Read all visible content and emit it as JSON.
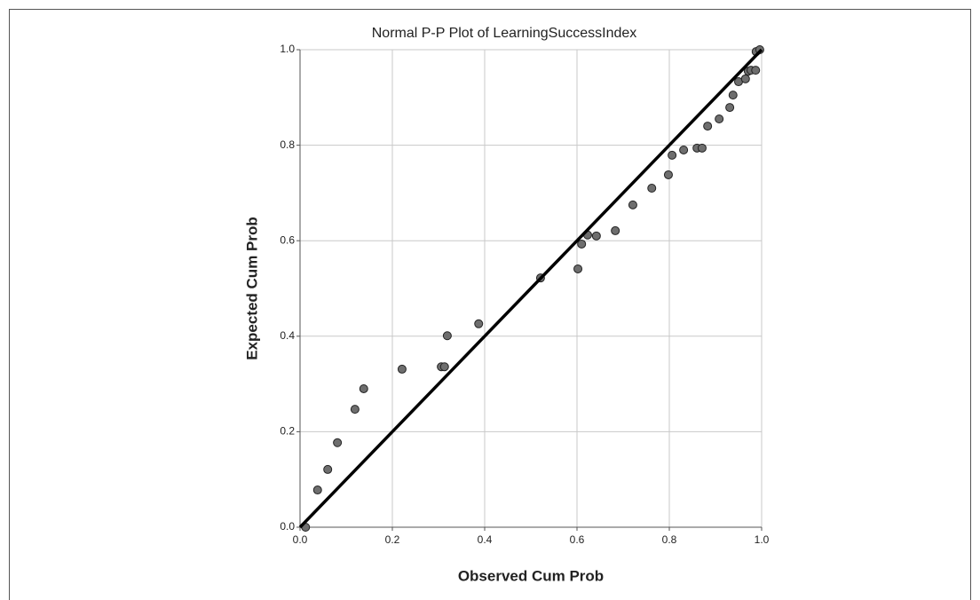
{
  "chart_data": {
    "type": "scatter",
    "title": "Normal P-P Plot of LearningSuccessIndex",
    "xlabel": "Observed Cum Prob",
    "ylabel": "Expected Cum Prob",
    "x": [
      0.012,
      0.038,
      0.06,
      0.081,
      0.119,
      0.138,
      0.221,
      0.306,
      0.313,
      0.319,
      0.387,
      0.521,
      0.602,
      0.61,
      0.623,
      0.642,
      0.683,
      0.721,
      0.762,
      0.798,
      0.806,
      0.831,
      0.86,
      0.871,
      0.883,
      0.908,
      0.931,
      0.938,
      0.95,
      0.965,
      0.971,
      0.977,
      0.987,
      0.988,
      0.996
    ],
    "values": [
      0.0,
      0.078,
      0.121,
      0.177,
      0.247,
      0.29,
      0.331,
      0.336,
      0.336,
      0.401,
      0.426,
      0.522,
      0.541,
      0.593,
      0.612,
      0.61,
      0.621,
      0.675,
      0.71,
      0.738,
      0.779,
      0.79,
      0.794,
      0.794,
      0.84,
      0.855,
      0.879,
      0.905,
      0.933,
      0.939,
      0.955,
      0.957,
      0.957,
      0.996,
      1.0
    ],
    "color": "#6e6e6e",
    "reference_line": {
      "x": [
        0,
        1
      ],
      "y": [
        0,
        1
      ],
      "color": "#000000"
    },
    "xlim": [
      0,
      1
    ],
    "ylim": [
      0,
      1
    ],
    "xticks": [
      {
        "value": 0,
        "label": "0.0"
      },
      0.2,
      0.4,
      0.6,
      0.8,
      {
        "value": 1,
        "label": "1.0"
      }
    ],
    "yticks": [
      {
        "value": 0,
        "label": "0.0"
      },
      0.2,
      0.4,
      0.6,
      0.8,
      {
        "value": 1,
        "label": "1.0"
      }
    ],
    "grid": true
  }
}
